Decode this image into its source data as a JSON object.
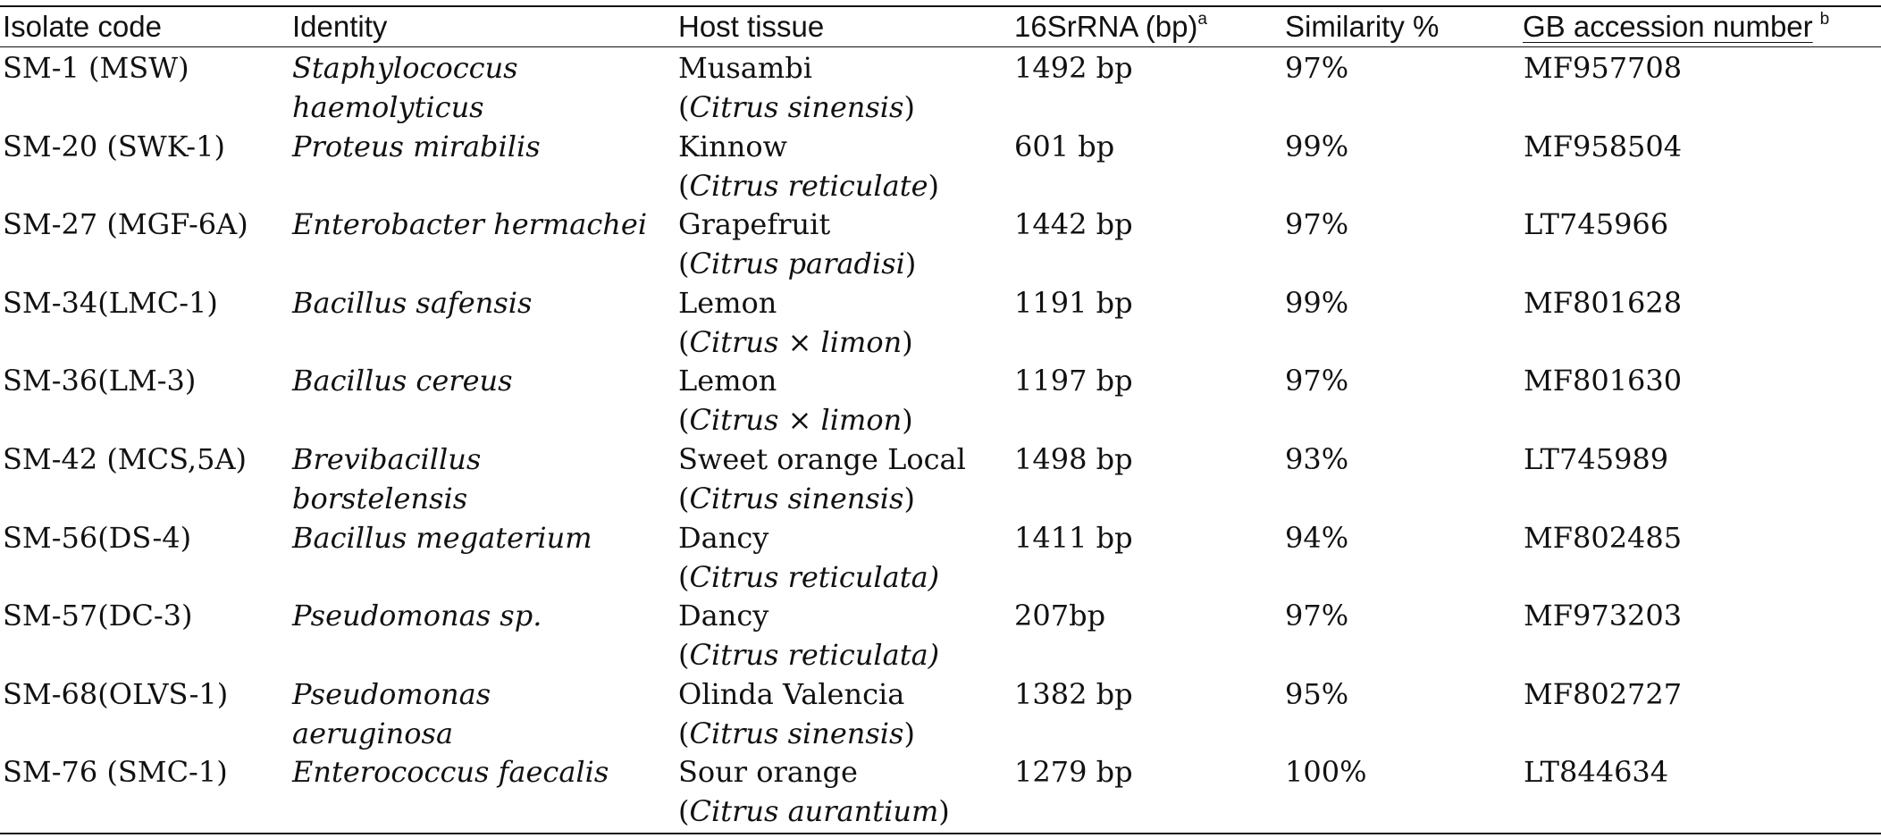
{
  "table": {
    "headers": {
      "isolate_code": "Isolate code",
      "identity": "Identity",
      "host_tissue": "Host tissue",
      "rrna": "16SrRNA (bp)",
      "rrna_sup": "a",
      "similarity": "Similarity %",
      "gb": "GB accession number",
      "gb_sup": "b"
    },
    "rows": [
      {
        "code": "SM-1 (MSW)",
        "identity1": "Staphylococcus",
        "identity2": "haemolyticus",
        "host1": "Musambi",
        "host2": "Citrus sinensis",
        "bp": "1492 bp",
        "similarity": "97%",
        "gb": "MF957708"
      },
      {
        "code": "SM-20 (SWK-1)",
        "identity1": "Proteus mirabilis",
        "identity2": "",
        "host1": "Kinnow",
        "host2": "Citrus reticulate",
        "bp": "601 bp",
        "similarity": "99%",
        "gb": "MF958504"
      },
      {
        "code": "SM-27 (MGF-6A)",
        "identity1": "Enterobacter hermachei",
        "identity2": "",
        "host1": "Grapefruit",
        "host2": "Citrus paradisi",
        "bp": "1442 bp",
        "similarity": "97%",
        "gb": "LT745966"
      },
      {
        "code": "SM-34(LMC-1)",
        "identity1": "Bacillus safensis",
        "identity2": "",
        "host1": "Lemon",
        "host2": "Citrus × limon",
        "bp": "1191 bp",
        "similarity": "99%",
        "gb": "MF801628"
      },
      {
        "code": "SM-36(LM-3)",
        "identity1": "Bacillus cereus",
        "identity2": "",
        "host1": "Lemon",
        "host2": "Citrus × limon",
        "bp": "1197 bp",
        "similarity": "97%",
        "gb": "MF801630"
      },
      {
        "code": "SM-42 (MCS,5A)",
        "identity1": "Brevibacillus",
        "identity2": "borstelensis",
        "host1": "Sweet orange Local",
        "host2": "Citrus sinensis",
        "bp": "1498 bp",
        "similarity": "93%",
        "gb": "LT745989"
      },
      {
        "code": "SM-56(DS-4)",
        "identity1": "Bacillus megaterium",
        "identity2": "",
        "host1": "Dancy",
        "host2": "Citrus reticulata)",
        "bp": "1411 bp",
        "similarity": "94%",
        "gb": "MF802485"
      },
      {
        "code": "SM-57(DC-3)",
        "identity1": "Pseudomonas sp.",
        "identity2": "",
        "host1": "Dancy",
        "host2": "Citrus reticulata)",
        "bp": "207bp",
        "similarity": "97%",
        "gb": "MF973203"
      },
      {
        "code": "SM-68(OLVS-1)",
        "identity1": "Pseudomonas",
        "identity2": "aeruginosa",
        "host1": "Olinda Valencia",
        "host2": "Citrus sinensis",
        "bp": "1382 bp",
        "similarity": "95%",
        "gb": "MF802727"
      },
      {
        "code": "SM-76 (SMC-1)",
        "identity1": "Enterococcus faecalis",
        "identity2": "",
        "host1": "Sour orange",
        "host2": "Citrus aurantium",
        "bp": "1279 bp",
        "similarity": "100%",
        "gb": "LT844634"
      }
    ]
  }
}
